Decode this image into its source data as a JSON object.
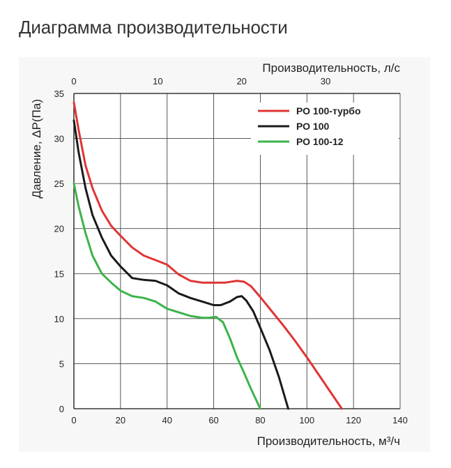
{
  "page": {
    "title": "Диаграмма производительности"
  },
  "chart_data": {
    "type": "line",
    "title": "",
    "xlabel": "Производительность, м³/ч",
    "x2label": "Производительность, л/с",
    "ylabel": "Давление, ΔP(Па)",
    "xlim": [
      0,
      140
    ],
    "ylim": [
      0,
      35
    ],
    "x_ticks": [
      0,
      20,
      40,
      60,
      80,
      100,
      120,
      140
    ],
    "x2_ticks": [
      0,
      10,
      20,
      30
    ],
    "y_ticks": [
      0,
      5,
      10,
      15,
      20,
      25,
      30,
      35
    ],
    "grid": true,
    "legend_position": "top-right",
    "series": [
      {
        "name": "РО 100-турбо",
        "color": "#e03434",
        "x": [
          0,
          2,
          5,
          8,
          12,
          16,
          20,
          25,
          30,
          35,
          40,
          45,
          50,
          55,
          60,
          65,
          70,
          73,
          76,
          80,
          85,
          90,
          95,
          100,
          105,
          110,
          115
        ],
        "y": [
          34,
          31,
          27,
          24.5,
          22,
          20.3,
          19.2,
          17.9,
          17,
          16.5,
          16,
          14.9,
          14.2,
          14,
          14,
          14,
          14.2,
          14.1,
          13.6,
          12.4,
          10.8,
          9.2,
          7.5,
          5.7,
          3.8,
          1.9,
          0
        ]
      },
      {
        "name": "РО 100",
        "color": "#1a1a1a",
        "x": [
          0,
          2,
          5,
          8,
          12,
          16,
          20,
          25,
          30,
          35,
          40,
          45,
          50,
          55,
          60,
          63,
          67,
          70,
          72,
          74,
          77,
          80,
          84,
          88,
          92
        ],
        "y": [
          32,
          28.5,
          24.5,
          21.5,
          19,
          17,
          15.8,
          14.5,
          14.3,
          14.2,
          13.7,
          12.8,
          12.3,
          11.9,
          11.5,
          11.5,
          11.9,
          12.4,
          12.5,
          12,
          10.8,
          9,
          6.5,
          3.5,
          0
        ]
      },
      {
        "name": "РО 100-12",
        "color": "#3cb34a",
        "x": [
          0,
          2,
          5,
          8,
          12,
          16,
          20,
          25,
          30,
          35,
          40,
          45,
          50,
          55,
          58,
          61,
          64,
          67,
          70,
          73,
          76,
          80
        ],
        "y": [
          25,
          22.5,
          19.5,
          17,
          15,
          14,
          13.1,
          12.5,
          12.3,
          11.9,
          11.1,
          10.7,
          10.3,
          10.1,
          10.1,
          10.2,
          9.6,
          7.8,
          5.7,
          4,
          2.2,
          0
        ]
      }
    ]
  }
}
